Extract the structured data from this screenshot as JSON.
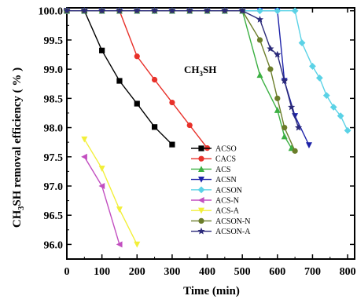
{
  "chart_data": {
    "type": "line",
    "xlabel": "Time (min)",
    "ylabel_parts": [
      "CH",
      "3",
      "SH removal efficiency ( % )"
    ],
    "annotation_parts": [
      "CH",
      "3",
      "SH"
    ],
    "xlim": [
      0,
      820
    ],
    "ylim": [
      95.75,
      100.05
    ],
    "x_ticks": [
      0,
      100,
      200,
      300,
      400,
      500,
      600,
      700,
      800
    ],
    "y_ticks": [
      96.0,
      96.5,
      97.0,
      97.5,
      98.0,
      98.5,
      99.0,
      99.5,
      100.0
    ],
    "y_tick_labels": [
      "96.0",
      "96.5",
      "97.0",
      "97.5",
      "98.0",
      "98.5",
      "99.0",
      "99.5",
      "100.0"
    ],
    "legend_position": "center-right",
    "series": [
      {
        "name": "ACSO",
        "color": "#000000",
        "marker": "square",
        "x": [
          0,
          50,
          100,
          150,
          200,
          250,
          300
        ],
        "y": [
          100.0,
          100.0,
          99.32,
          98.8,
          98.41,
          98.01,
          97.71
        ]
      },
      {
        "name": "CACS",
        "color": "#e8312a",
        "marker": "circle",
        "x": [
          0,
          50,
          100,
          150,
          200,
          250,
          300,
          350,
          400
        ],
        "y": [
          100.0,
          100.0,
          100.0,
          100.0,
          99.22,
          98.82,
          98.43,
          98.04,
          97.65
        ]
      },
      {
        "name": "ACS",
        "color": "#3cb043",
        "marker": "triangle-up",
        "x": [
          0,
          50,
          100,
          150,
          200,
          250,
          300,
          350,
          400,
          450,
          500,
          550,
          600,
          620,
          640
        ],
        "y": [
          100.0,
          100.0,
          100.0,
          100.0,
          100.0,
          100.0,
          100.0,
          100.0,
          100.0,
          100.0,
          100.0,
          98.9,
          98.3,
          97.85,
          97.65
        ]
      },
      {
        "name": "ACSN",
        "color": "#1d22a8",
        "marker": "triangle-down",
        "x": [
          0,
          50,
          100,
          150,
          200,
          250,
          300,
          350,
          400,
          450,
          500,
          550,
          600,
          620,
          650,
          690
        ],
        "y": [
          100.0,
          100.0,
          100.0,
          100.0,
          100.0,
          100.0,
          100.0,
          100.0,
          100.0,
          100.0,
          100.0,
          100.0,
          100.0,
          98.8,
          98.2,
          97.7
        ]
      },
      {
        "name": "ACSON",
        "color": "#5bd2e6",
        "marker": "diamond",
        "x": [
          0,
          50,
          100,
          150,
          200,
          250,
          300,
          350,
          400,
          450,
          500,
          550,
          600,
          650,
          670,
          700,
          720,
          740,
          760,
          780,
          800
        ],
        "y": [
          100.0,
          100.0,
          100.0,
          100.0,
          100.0,
          100.0,
          100.0,
          100.0,
          100.0,
          100.0,
          100.0,
          100.0,
          100.0,
          100.0,
          99.45,
          99.05,
          98.85,
          98.55,
          98.35,
          98.2,
          97.95
        ]
      },
      {
        "name": "ACS-N",
        "color": "#c24fc0",
        "marker": "triangle-left",
        "x": [
          50,
          100,
          150
        ],
        "y": [
          97.5,
          97.0,
          96.0
        ]
      },
      {
        "name": "ACS-A",
        "color": "#f2ef3a",
        "marker": "triangle-down",
        "x": [
          50,
          100,
          150,
          200
        ],
        "y": [
          97.8,
          97.3,
          96.6,
          96.0
        ]
      },
      {
        "name": "ACSON-N",
        "color": "#6b7d2a",
        "marker": "circle",
        "x": [
          0,
          50,
          100,
          150,
          200,
          250,
          300,
          350,
          400,
          450,
          500,
          550,
          580,
          600,
          620,
          650
        ],
        "y": [
          100.0,
          100.0,
          100.0,
          100.0,
          100.0,
          100.0,
          100.0,
          100.0,
          100.0,
          100.0,
          100.0,
          99.5,
          99.0,
          98.5,
          98.0,
          97.6
        ]
      },
      {
        "name": "ACSON-A",
        "color": "#2b2a7a",
        "marker": "star",
        "x": [
          0,
          50,
          100,
          150,
          200,
          250,
          300,
          350,
          400,
          450,
          500,
          550,
          580,
          600,
          620,
          640,
          660
        ],
        "y": [
          100.0,
          100.0,
          100.0,
          100.0,
          100.0,
          100.0,
          100.0,
          100.0,
          100.0,
          100.0,
          100.0,
          99.85,
          99.35,
          99.25,
          98.8,
          98.35,
          98.0
        ]
      }
    ]
  }
}
